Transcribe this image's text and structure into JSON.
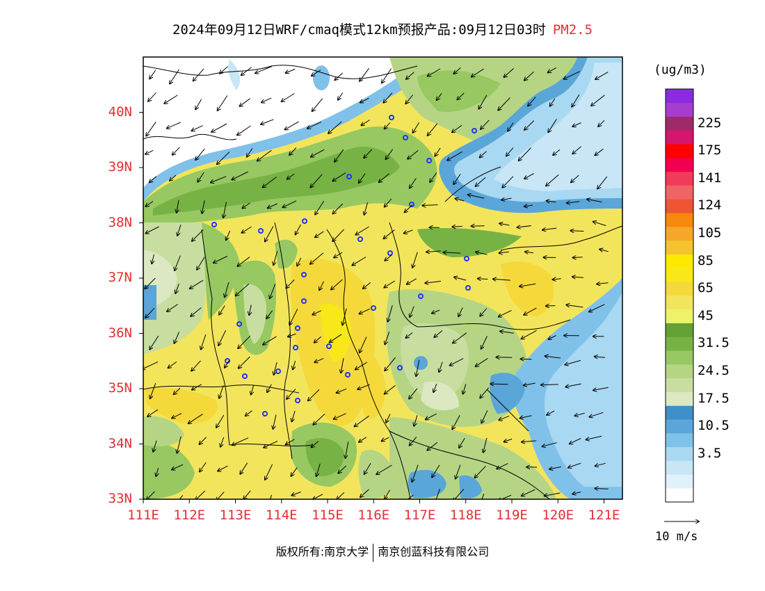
{
  "title": {
    "main": "2024年09月12日WRF/cmaq模式12km预报产品:09月12日03时",
    "pollutant": "PM2.5"
  },
  "map": {
    "lat_labels": [
      "40N",
      "39N",
      "38N",
      "37N",
      "36N",
      "35N",
      "34N",
      "33N"
    ],
    "lon_labels": [
      "111E",
      "112E",
      "113E",
      "114E",
      "115E",
      "116E",
      "117E",
      "118E",
      "119E",
      "120E",
      "121E"
    ],
    "lat_range": [
      33,
      41
    ],
    "lon_range": [
      111,
      121.4
    ],
    "station_marker_color": "#2030ff"
  },
  "legend": {
    "unit": "(ug/m3)",
    "colors": [
      "#ffffff",
      "#dff1fb",
      "#c8e6f5",
      "#a9d8f2",
      "#80c1ea",
      "#5aa6d8",
      "#3d8ec9",
      "#dbe8c2",
      "#c8dea0",
      "#b5d585",
      "#97c862",
      "#77b344",
      "#63a132",
      "#eef26a",
      "#f2e55c",
      "#f5d93a",
      "#f8e81a",
      "#fbea00",
      "#f5c230",
      "#f6a62a",
      "#f7880b",
      "#ee5532",
      "#f06468",
      "#f23a5a",
      "#f0004e",
      "#ff0000",
      "#d6156e",
      "#a02a68",
      "#a53ed0",
      "#8a2be2"
    ],
    "labels": [
      {
        "text": "225",
        "index": 27.5
      },
      {
        "text": "175",
        "index": 25.5
      },
      {
        "text": "141",
        "index": 23.5
      },
      {
        "text": "124",
        "index": 21.5
      },
      {
        "text": "105",
        "index": 19.5
      },
      {
        "text": "85",
        "index": 17.5
      },
      {
        "text": "65",
        "index": 15.5
      },
      {
        "text": "45",
        "index": 13.5
      },
      {
        "text": "31.5",
        "index": 11.5
      },
      {
        "text": "24.5",
        "index": 9.5
      },
      {
        "text": "17.5",
        "index": 7.5
      },
      {
        "text": "10.5",
        "index": 5.5
      },
      {
        "text": "3.5",
        "index": 3.5
      }
    ]
  },
  "wind_key": {
    "label": "10 m/s"
  },
  "copyright": {
    "left": "版权所有:南京大学",
    "right": "南京创蓝科技有限公司"
  }
}
